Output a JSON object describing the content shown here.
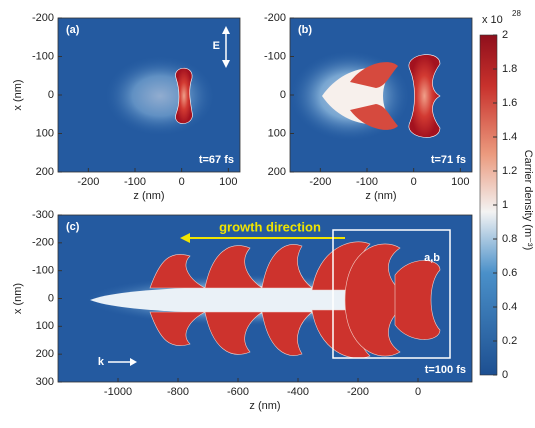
{
  "chart_data": [
    {
      "type": "heatmap",
      "label": "(a)",
      "xlabel": "z (nm)",
      "ylabel": "x (nm)",
      "xlim": [
        -265,
        125
      ],
      "ylim": [
        -200,
        200
      ],
      "xticks": [
        -200,
        -100,
        0,
        100
      ],
      "yticks": [
        -200,
        -100,
        0,
        100,
        200
      ],
      "time": "t=67 fs",
      "field": "E"
    },
    {
      "type": "heatmap",
      "label": "(b)",
      "xlabel": "z (nm)",
      "xlim": [
        -265,
        125
      ],
      "ylim": [
        -200,
        200
      ],
      "xticks": [
        -200,
        -100,
        0,
        100
      ],
      "yticks": [
        -200,
        -100,
        0,
        100,
        200
      ],
      "time": "t=71 fs"
    },
    {
      "type": "heatmap",
      "label": "(c)",
      "xlabel": "z (nm)",
      "ylabel": "x (nm)",
      "xlim": [
        -1200,
        180
      ],
      "ylim": [
        -300,
        300
      ],
      "xticks": [
        -1000,
        -800,
        -600,
        -400,
        -200,
        0
      ],
      "yticks": [
        -300,
        -200,
        -100,
        0,
        100,
        200,
        300
      ],
      "time": "t=100 fs",
      "annotation": "growth direction",
      "box_label": "a,b",
      "k_label": "k"
    }
  ],
  "colorbar": {
    "label": "Carrier density (m⁻³)",
    "scale": "x 10",
    "exponent": "28",
    "lim": [
      0,
      2
    ],
    "ticks": [
      0,
      0.2,
      0.4,
      0.6,
      0.8,
      1,
      1.2,
      1.4,
      1.6,
      1.8,
      2
    ]
  }
}
